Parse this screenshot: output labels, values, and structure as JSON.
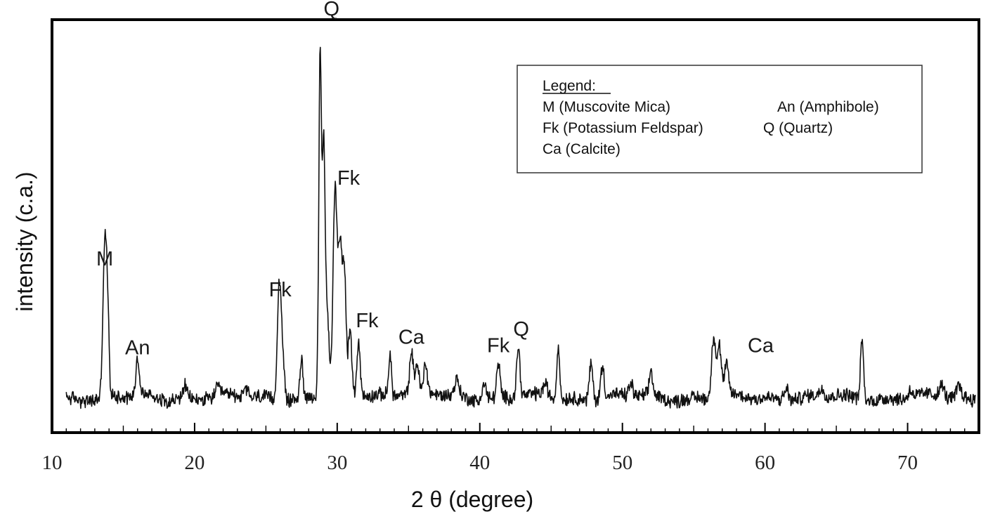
{
  "chart_data": {
    "type": "line",
    "title": "",
    "xlabel": "2 θ (degree)",
    "ylabel": "intensity (c.a.)",
    "xlim": [
      10,
      75
    ],
    "ylim": [
      0,
      1
    ],
    "x_ticks": [
      10,
      20,
      30,
      40,
      50,
      60,
      70
    ],
    "x_tick_labels": [
      "10",
      "20",
      "30",
      "40",
      "50",
      "60",
      "70"
    ],
    "y_ticks_labeled": false,
    "grid": false,
    "baseline": 0.085,
    "peaks": [
      {
        "x": 13.7,
        "y": 0.36,
        "w": 0.13
      },
      {
        "x": 13.9,
        "y": 0.17,
        "w": 0.1
      },
      {
        "x": 16.0,
        "y": 0.09,
        "w": 0.12
      },
      {
        "x": 19.3,
        "y": 0.03,
        "w": 0.15
      },
      {
        "x": 21.6,
        "y": 0.02,
        "w": 0.15
      },
      {
        "x": 23.6,
        "y": 0.02,
        "w": 0.15
      },
      {
        "x": 25.9,
        "y": 0.22,
        "w": 0.12
      },
      {
        "x": 26.1,
        "y": 0.16,
        "w": 0.14
      },
      {
        "x": 27.5,
        "y": 0.09,
        "w": 0.1
      },
      {
        "x": 28.8,
        "y": 0.82,
        "w": 0.09
      },
      {
        "x": 29.05,
        "y": 0.6,
        "w": 0.1
      },
      {
        "x": 29.3,
        "y": 0.2,
        "w": 0.12
      },
      {
        "x": 29.85,
        "y": 0.5,
        "w": 0.14
      },
      {
        "x": 30.2,
        "y": 0.35,
        "w": 0.13
      },
      {
        "x": 30.5,
        "y": 0.3,
        "w": 0.12
      },
      {
        "x": 30.9,
        "y": 0.15,
        "w": 0.12
      },
      {
        "x": 31.5,
        "y": 0.13,
        "w": 0.12
      },
      {
        "x": 33.7,
        "y": 0.1,
        "w": 0.1
      },
      {
        "x": 35.2,
        "y": 0.1,
        "w": 0.12
      },
      {
        "x": 35.6,
        "y": 0.07,
        "w": 0.12
      },
      {
        "x": 36.2,
        "y": 0.07,
        "w": 0.12
      },
      {
        "x": 38.4,
        "y": 0.04,
        "w": 0.15
      },
      {
        "x": 40.3,
        "y": 0.04,
        "w": 0.15
      },
      {
        "x": 41.3,
        "y": 0.08,
        "w": 0.12
      },
      {
        "x": 42.7,
        "y": 0.12,
        "w": 0.12
      },
      {
        "x": 44.6,
        "y": 0.03,
        "w": 0.15
      },
      {
        "x": 45.5,
        "y": 0.13,
        "w": 0.1
      },
      {
        "x": 47.8,
        "y": 0.09,
        "w": 0.12
      },
      {
        "x": 48.6,
        "y": 0.08,
        "w": 0.12
      },
      {
        "x": 50.6,
        "y": 0.03,
        "w": 0.15
      },
      {
        "x": 52.0,
        "y": 0.06,
        "w": 0.12
      },
      {
        "x": 56.4,
        "y": 0.15,
        "w": 0.14
      },
      {
        "x": 56.8,
        "y": 0.12,
        "w": 0.14
      },
      {
        "x": 57.3,
        "y": 0.07,
        "w": 0.14
      },
      {
        "x": 61.5,
        "y": 0.03,
        "w": 0.15
      },
      {
        "x": 64.0,
        "y": 0.02,
        "w": 0.15
      },
      {
        "x": 66.8,
        "y": 0.15,
        "w": 0.1
      },
      {
        "x": 70.2,
        "y": 0.02,
        "w": 0.15
      },
      {
        "x": 72.4,
        "y": 0.03,
        "w": 0.15
      },
      {
        "x": 73.6,
        "y": 0.03,
        "w": 0.15
      }
    ],
    "annotations": [
      {
        "text": "M",
        "x": 13.7,
        "y": 0.405
      },
      {
        "text": "An",
        "x": 16.0,
        "y": 0.19
      },
      {
        "text": "Fk",
        "x": 26.0,
        "y": 0.33
      },
      {
        "text": "Q",
        "x": 29.6,
        "y": 1.01
      },
      {
        "text": "Fk",
        "x": 30.8,
        "y": 0.6
      },
      {
        "text": "Fk",
        "x": 32.1,
        "y": 0.255
      },
      {
        "text": "Ca",
        "x": 35.2,
        "y": 0.215
      },
      {
        "text": "Fk",
        "x": 41.3,
        "y": 0.195
      },
      {
        "text": "Q",
        "x": 42.9,
        "y": 0.235
      },
      {
        "text": "Ca",
        "x": 59.7,
        "y": 0.195
      }
    ],
    "legend": {
      "position": "top-right",
      "title": "Legend:",
      "entries": [
        "M (Muscovite Mica)",
        "An (Amphibole)",
        "Fk (Potassium Feldspar)",
        "Q (Quartz)",
        "Ca (Calcite)"
      ]
    }
  }
}
